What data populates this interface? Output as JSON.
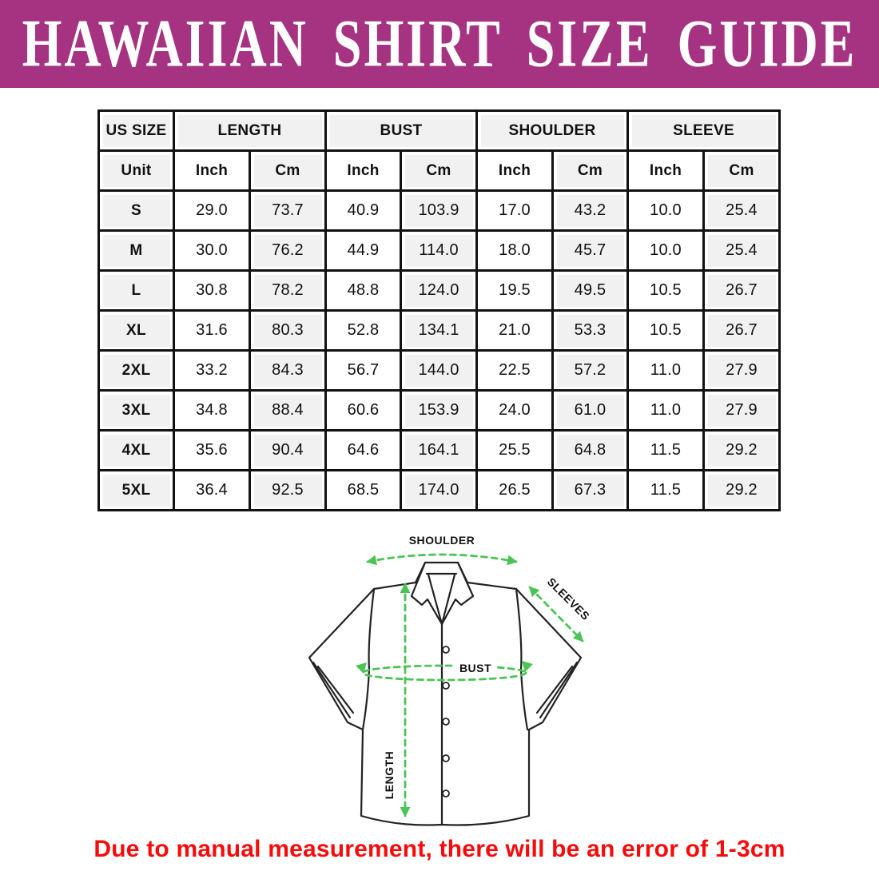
{
  "banner": {
    "title": "HAWAIIAN SHIRT SIZE GUIDE"
  },
  "table": {
    "corner_header": "US SIZE",
    "group_headers": [
      "LENGTH",
      "BUST",
      "SHOULDER",
      "SLEEVE"
    ],
    "unit_row": {
      "label": "Unit",
      "cells": [
        "Inch",
        "Cm",
        "Inch",
        "Cm",
        "Inch",
        "Cm",
        "Inch",
        "Cm"
      ]
    },
    "rows": [
      {
        "size": "S",
        "values": [
          "29.0",
          "73.7",
          "40.9",
          "103.9",
          "17.0",
          "43.2",
          "10.0",
          "25.4"
        ]
      },
      {
        "size": "M",
        "values": [
          "30.0",
          "76.2",
          "44.9",
          "114.0",
          "18.0",
          "45.7",
          "10.0",
          "25.4"
        ]
      },
      {
        "size": "L",
        "values": [
          "30.8",
          "78.2",
          "48.8",
          "124.0",
          "19.5",
          "49.5",
          "10.5",
          "26.7"
        ]
      },
      {
        "size": "XL",
        "values": [
          "31.6",
          "80.3",
          "52.8",
          "134.1",
          "21.0",
          "53.3",
          "10.5",
          "26.7"
        ]
      },
      {
        "size": "2XL",
        "values": [
          "33.2",
          "84.3",
          "56.7",
          "144.0",
          "22.5",
          "57.2",
          "11.0",
          "27.9"
        ]
      },
      {
        "size": "3XL",
        "values": [
          "34.8",
          "88.4",
          "60.6",
          "153.9",
          "24.0",
          "61.0",
          "11.0",
          "27.9"
        ]
      },
      {
        "size": "4XL",
        "values": [
          "35.6",
          "90.4",
          "64.6",
          "164.1",
          "25.5",
          "64.8",
          "11.5",
          "29.2"
        ]
      },
      {
        "size": "5XL",
        "values": [
          "36.4",
          "92.5",
          "68.5",
          "174.0",
          "26.5",
          "67.3",
          "11.5",
          "29.2"
        ]
      }
    ]
  },
  "diagram": {
    "labels": {
      "shoulder": "SHOULDER",
      "sleeves": "SLEEVES",
      "bust": "BUST",
      "length": "LENGTH"
    }
  },
  "footnote": {
    "text": "Due to manual measurement, there will be an error of 1-3cm"
  },
  "colors": {
    "banner_bg": "#A53381",
    "banner_text": "#FFFFFF",
    "arrow_green": "#4CC455",
    "note_red": "#F70A0A",
    "table_border": "#111111",
    "cell_shade": "#F1F1F1",
    "shirt_outline": "#222222"
  }
}
